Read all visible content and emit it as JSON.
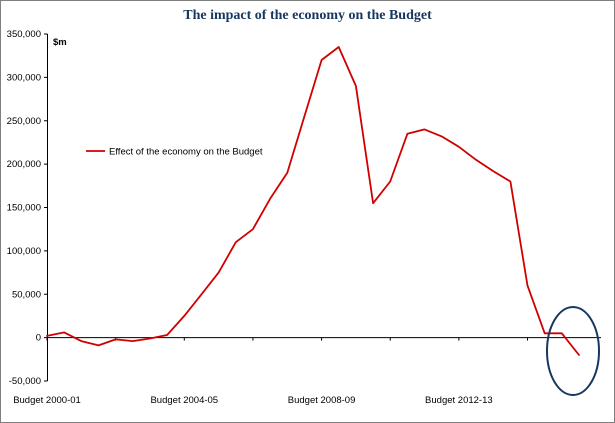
{
  "chart_data": {
    "type": "line",
    "title": "The impact of the economy on the Budget",
    "xlabel": "",
    "ylabel": "$m",
    "y_unit_label": "$m",
    "ylim": [
      -50000,
      350000
    ],
    "grid": false,
    "legend_position": "inside-left",
    "legend": {
      "label": "Effect of the economy on the Budget",
      "color": "#d00000"
    },
    "y_ticks": [
      350000,
      300000,
      250000,
      200000,
      150000,
      100000,
      50000,
      0,
      -50000
    ],
    "y_tick_labels": [
      "350,000",
      "300,000",
      "250,000",
      "200,000",
      "150,000",
      "100,000",
      "50,000",
      "0",
      "-50,000"
    ],
    "x_tick_labels": [
      "Budget 2000-01",
      "Budget 2004-05",
      "Budget 2008-09",
      "Budget 2012-13"
    ],
    "x_tick_indices": [
      0,
      8,
      16,
      24
    ],
    "series": [
      {
        "name": "Effect of the economy on the Budget",
        "color": "#d00000",
        "values": [
          2000,
          6000,
          -4000,
          -9000,
          -2000,
          -4000,
          -1000,
          3000,
          25000,
          50000,
          75000,
          110000,
          125000,
          160000,
          190000,
          255000,
          320000,
          335000,
          290000,
          155000,
          180000,
          235000,
          240000,
          232000,
          220000,
          205000,
          192000,
          180000,
          60000,
          5000,
          5000,
          -20000
        ]
      }
    ],
    "annotation": {
      "shape": "ellipse",
      "description": "hand-drawn style oval highlighting the final, negative data point",
      "color": "#17375e",
      "highlighted_value": -20000
    }
  },
  "colors": {
    "title": "#17375e",
    "axis": "#000000",
    "background": "#ffffff",
    "frame_border": "#7f7f7f"
  }
}
